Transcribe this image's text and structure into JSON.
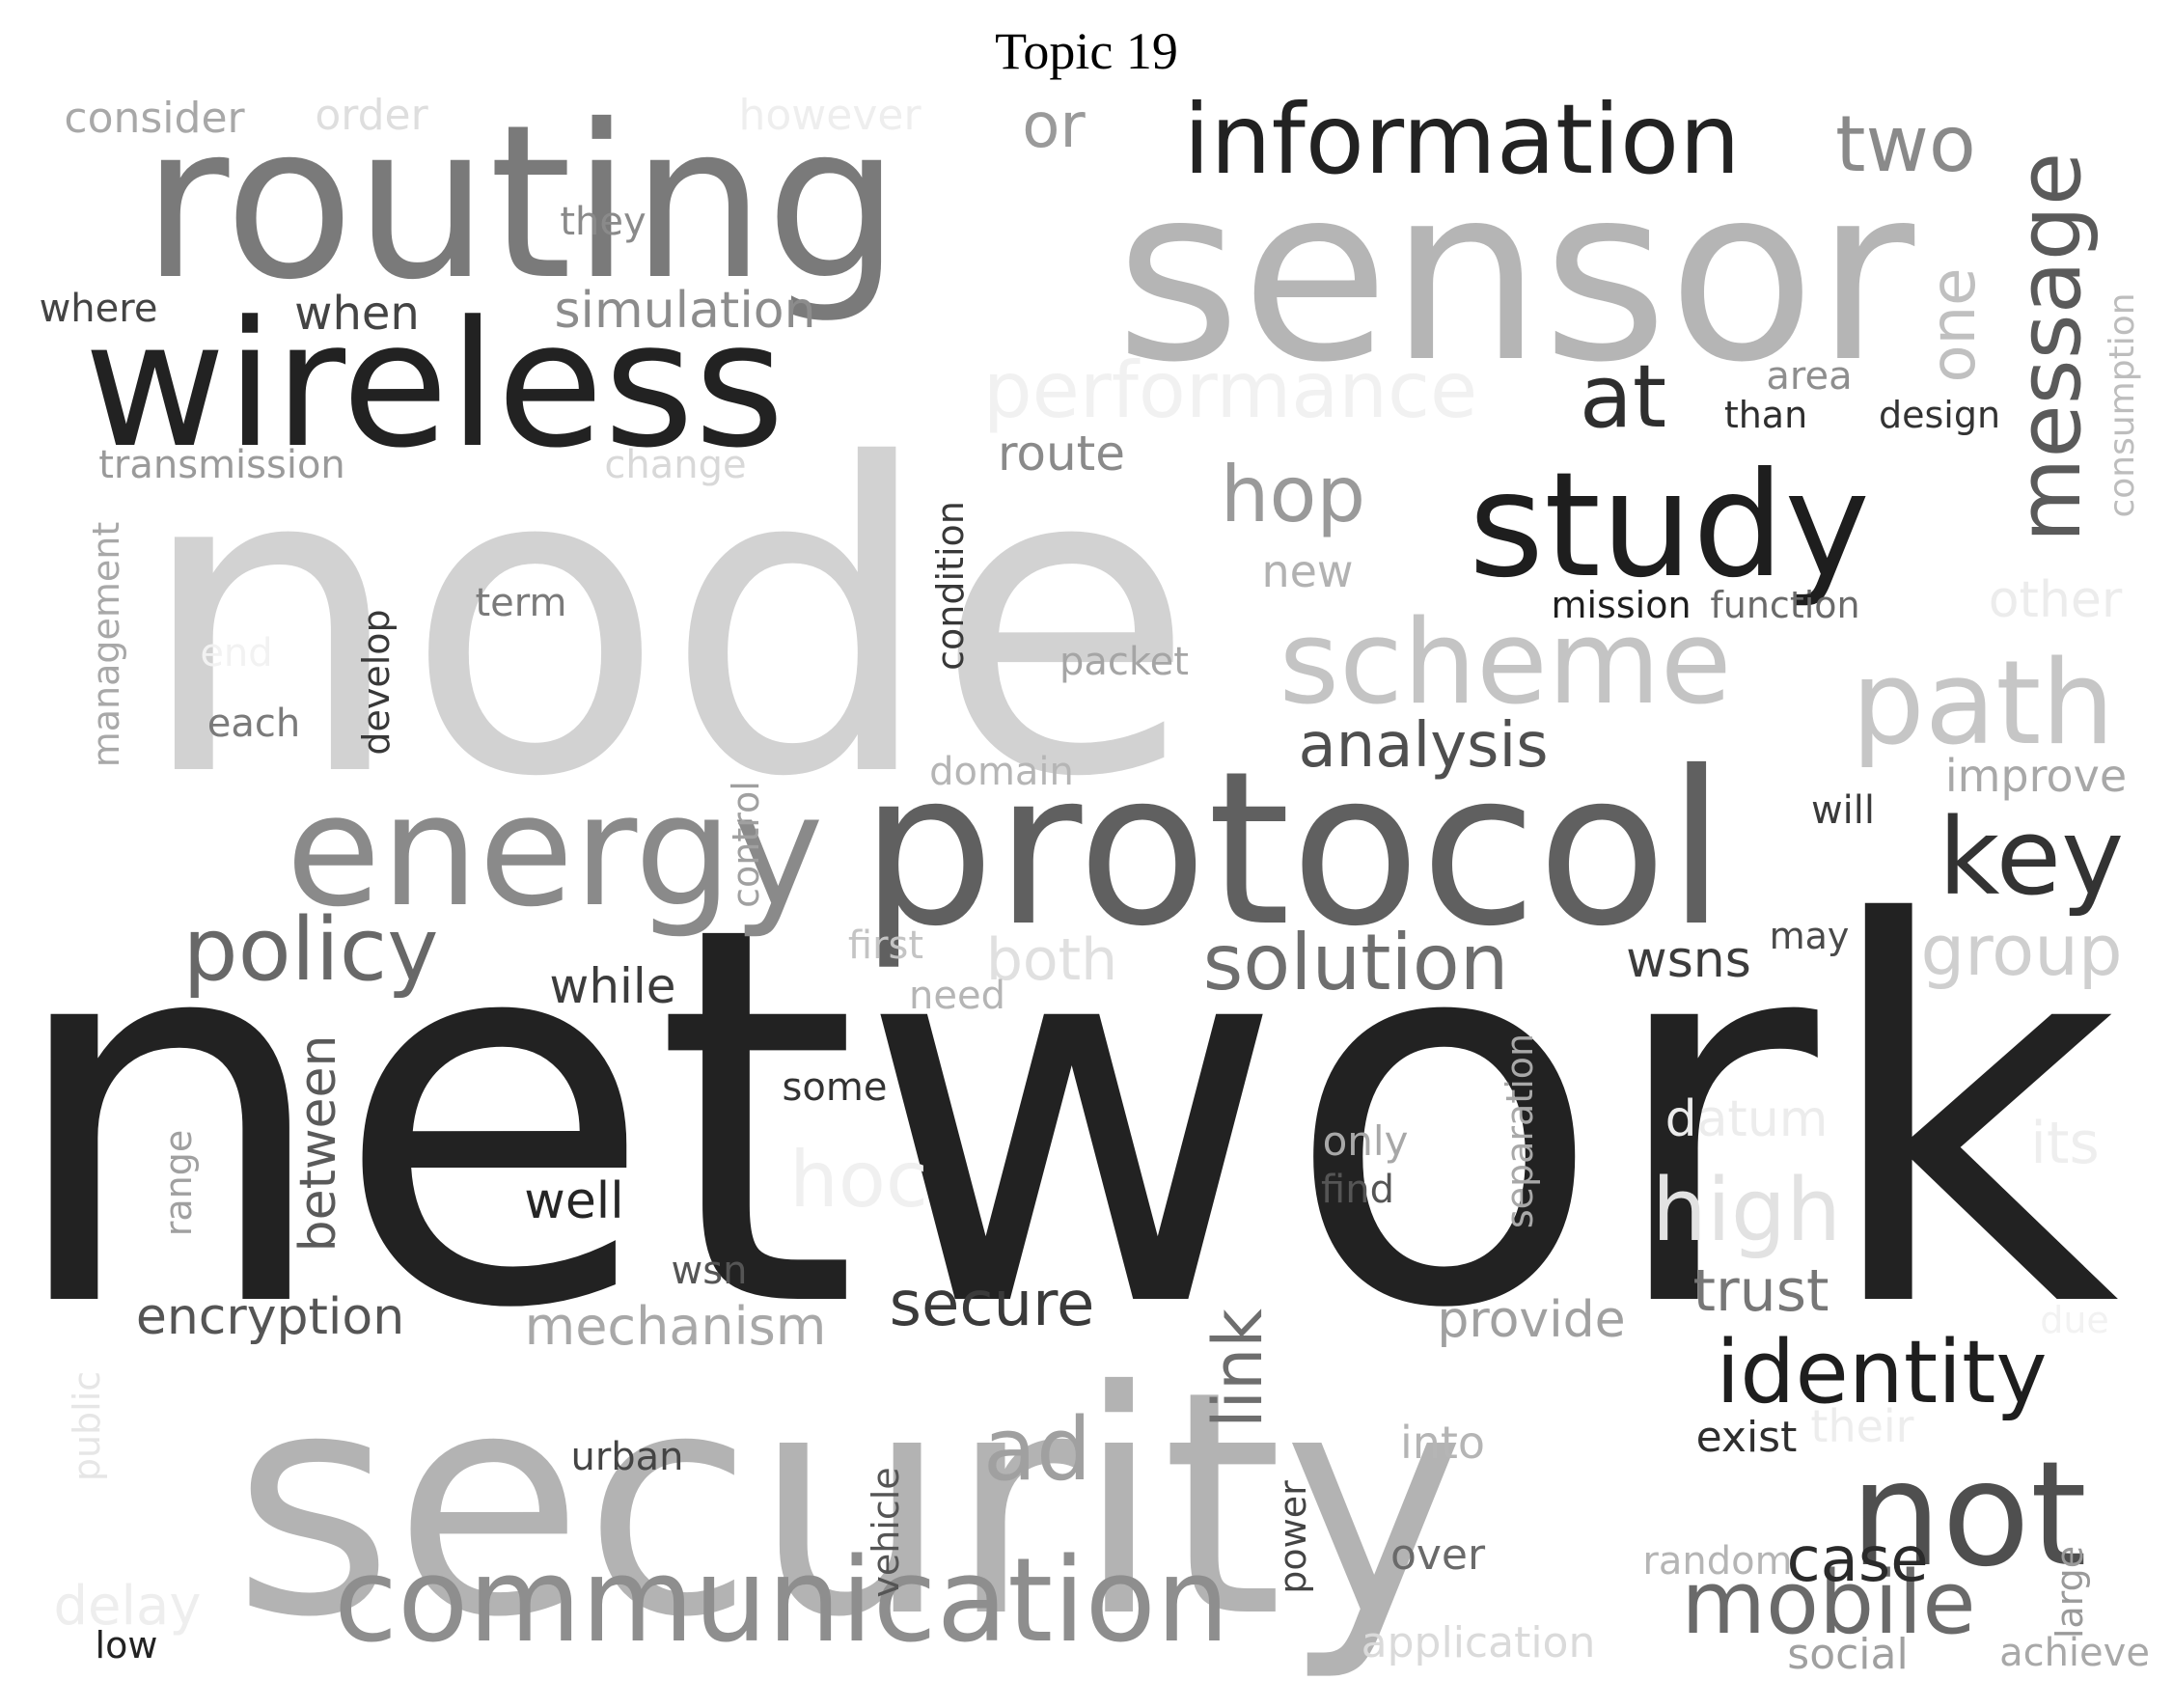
{
  "title": "Topic 19",
  "colors": {
    "background": "#ffffff",
    "dark": "#222222",
    "mid": "#777777",
    "light": "#b5b5b5",
    "faint": "#ececec"
  },
  "words": [
    {
      "text": "network",
      "color": "#222222"
    },
    {
      "text": "node",
      "color": "#d2d2d2"
    },
    {
      "text": "security",
      "color": "#b3b3b3"
    },
    {
      "text": "sensor",
      "color": "#b5b5b5"
    },
    {
      "text": "routing",
      "color": "#7a7a7a"
    },
    {
      "text": "protocol",
      "color": "#606060"
    },
    {
      "text": "wireless",
      "color": "#222222"
    },
    {
      "text": "energy",
      "color": "#8a8a8a"
    },
    {
      "text": "study",
      "color": "#1e1e1e"
    },
    {
      "text": "communication",
      "color": "#8e8e8e"
    },
    {
      "text": "information",
      "color": "#222222"
    },
    {
      "text": "scheme",
      "color": "#c4c4c4"
    },
    {
      "text": "path",
      "color": "#c6c6c6"
    },
    {
      "text": "not",
      "color": "#4f4f4f"
    },
    {
      "text": "key",
      "color": "#333333"
    },
    {
      "text": "identity",
      "color": "#1e1e1e"
    },
    {
      "text": "policy",
      "color": "#686868"
    },
    {
      "text": "solution",
      "color": "#6e6e6e"
    },
    {
      "text": "message",
      "color": "#5a5a5a"
    },
    {
      "text": "mobile",
      "color": "#6a6a6a"
    },
    {
      "text": "high",
      "color": "#e2e2e2"
    },
    {
      "text": "ad",
      "color": "#a0a0a0"
    },
    {
      "text": "hop",
      "color": "#9a9a9a"
    },
    {
      "text": "at",
      "color": "#2e2e2e"
    },
    {
      "text": "two",
      "color": "#8a8a8a"
    },
    {
      "text": "performance",
      "color": "#f1f1f1"
    },
    {
      "text": "group",
      "color": "#cfcfcf"
    },
    {
      "text": "analysis",
      "color": "#4f4f4f"
    },
    {
      "text": "secure",
      "color": "#3a3a3a"
    },
    {
      "text": "link",
      "color": "#6e6e6e"
    },
    {
      "text": "hoc",
      "color": "#f0f0f0"
    },
    {
      "text": "one",
      "color": "#c0c0c0"
    },
    {
      "text": "or",
      "color": "#9a9a9a"
    },
    {
      "text": "trust",
      "color": "#777777"
    },
    {
      "text": "case",
      "color": "#2a2a2a"
    },
    {
      "text": "encryption",
      "color": "#555555"
    },
    {
      "text": "mechanism",
      "color": "#a8a8a8"
    },
    {
      "text": "wsns",
      "color": "#3c3c3c"
    },
    {
      "text": "provide",
      "color": "#a0a0a0"
    },
    {
      "text": "simulation",
      "color": "#8c8c8c"
    },
    {
      "text": "between",
      "color": "#5a5a5a"
    },
    {
      "text": "well",
      "color": "#262626"
    },
    {
      "text": "when",
      "color": "#444444"
    },
    {
      "text": "route",
      "color": "#8a8a8a"
    },
    {
      "text": "while",
      "color": "#3c3c3c"
    },
    {
      "text": "both",
      "color": "#e0e0e0"
    },
    {
      "text": "improve",
      "color": "#a8a8a8"
    },
    {
      "text": "datum",
      "color": "#ececec"
    },
    {
      "text": "its",
      "color": "#eeeeee"
    },
    {
      "text": "other",
      "color": "#ececec"
    },
    {
      "text": "new",
      "color": "#b2b2b2"
    },
    {
      "text": "into",
      "color": "#b5b5b5"
    },
    {
      "text": "consider",
      "color": "#a8a8a8"
    },
    {
      "text": "order",
      "color": "#dedede"
    },
    {
      "text": "however",
      "color": "#eeeeee"
    },
    {
      "text": "they",
      "color": "#8a8a8a"
    },
    {
      "text": "where",
      "color": "#444444"
    },
    {
      "text": "transmission",
      "color": "#9a9a9a"
    },
    {
      "text": "change",
      "color": "#d8d8d8"
    },
    {
      "text": "management",
      "color": "#a8a8a8"
    },
    {
      "text": "term",
      "color": "#7a7a7a"
    },
    {
      "text": "each",
      "color": "#7a7a7a"
    },
    {
      "text": "develop",
      "color": "#383838"
    },
    {
      "text": "condition",
      "color": "#383838"
    },
    {
      "text": "packet",
      "color": "#a5a5a5"
    },
    {
      "text": "domain",
      "color": "#b5b5b5"
    },
    {
      "text": "control",
      "color": "#a0a0a0"
    },
    {
      "text": "first",
      "color": "#c4c4c4"
    },
    {
      "text": "need",
      "color": "#b5b5b5"
    },
    {
      "text": "some",
      "color": "#333333"
    },
    {
      "text": "range",
      "color": "#a0a0a0"
    },
    {
      "text": "only",
      "color": "#a8a8a8"
    },
    {
      "text": "find",
      "color": "#555555"
    },
    {
      "text": "separation",
      "color": "#a8a8a8"
    },
    {
      "text": "wsn",
      "color": "#555555"
    },
    {
      "text": "public",
      "color": "#e6e6e6"
    },
    {
      "text": "urban",
      "color": "#444444"
    },
    {
      "text": "vehicle",
      "color": "#555555"
    },
    {
      "text": "power",
      "color": "#444444"
    },
    {
      "text": "over",
      "color": "#6a6a6a"
    },
    {
      "text": "random",
      "color": "#b5b5b5"
    },
    {
      "text": "exist",
      "color": "#2e2e2e"
    },
    {
      "text": "their",
      "color": "#ededed"
    },
    {
      "text": "due",
      "color": "#f2f2f2"
    },
    {
      "text": "large",
      "color": "#9a9a9a"
    },
    {
      "text": "achieve",
      "color": "#a8a8a8"
    },
    {
      "text": "social",
      "color": "#a0a0a0"
    },
    {
      "text": "application",
      "color": "#dadada"
    },
    {
      "text": "delay",
      "color": "#eeeeee"
    },
    {
      "text": "low",
      "color": "#222222"
    },
    {
      "text": "area",
      "color": "#8e8e8e"
    },
    {
      "text": "than",
      "color": "#2e2e2e"
    },
    {
      "text": "design",
      "color": "#333333"
    },
    {
      "text": "mission",
      "color": "#1e1e1e"
    },
    {
      "text": "function",
      "color": "#6a6a6a"
    },
    {
      "text": "consumption",
      "color": "#bdbdbd"
    },
    {
      "text": "will",
      "color": "#3a3a3a"
    },
    {
      "text": "may",
      "color": "#4a4a4a"
    },
    {
      "text": "end",
      "color": "#f2f2f2"
    }
  ]
}
